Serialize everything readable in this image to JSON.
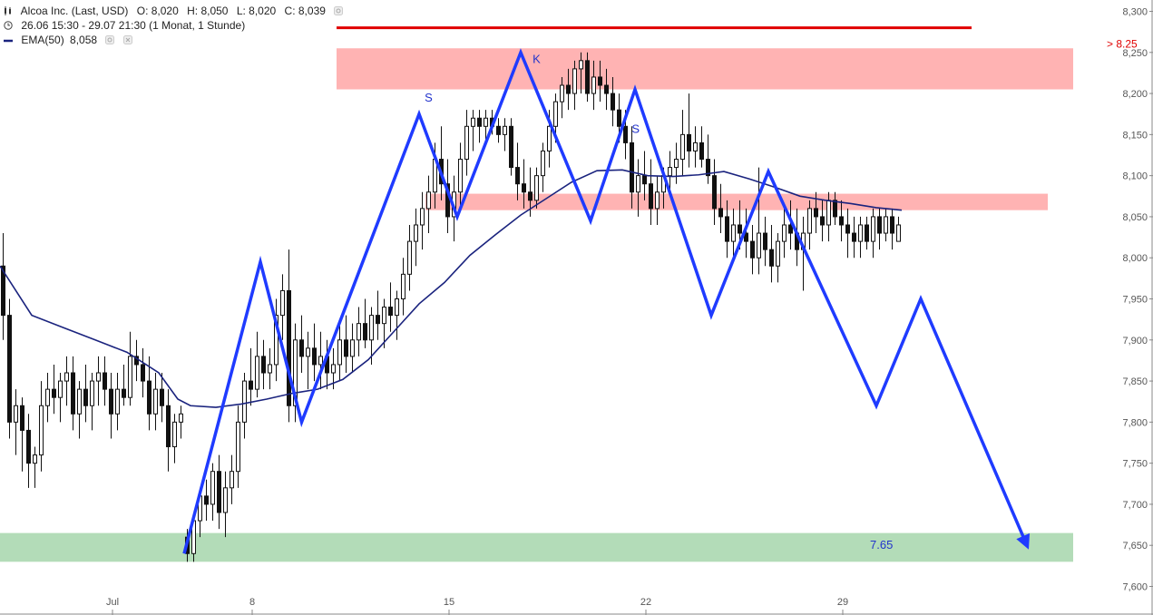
{
  "header": {
    "symbol_line": {
      "name": "Alcoa Inc. (Last, USD)",
      "open": "O: 8,020",
      "high": "H: 8,050",
      "low": "L: 8,020",
      "close": "C: 8,039"
    },
    "range_line": "26.06 15:30 - 29.07 21:30 (1 Monat, 1 Stunde)",
    "ema_line": {
      "label": "EMA(50)",
      "value": "8,058"
    }
  },
  "colors": {
    "candle": "#111111",
    "ema": "#1a237e",
    "pattern": "#1f3bff",
    "resistance_line": "#e00000",
    "red_zone": "#ffb3b3",
    "green_zone": "#b3dcb8",
    "text_blue": "#2233cc",
    "text_red": "#e00000"
  },
  "chart_data": {
    "type": "candlestick",
    "y_axis": {
      "range": [
        7.59,
        8.31
      ],
      "ticks": [
        "8,300",
        "8,250",
        "8,200",
        "8,150",
        "8,100",
        "8,050",
        "8,000",
        "7,950",
        "7,900",
        "7,850",
        "7,800",
        "7,750",
        "7,700",
        "7,650",
        "7,600"
      ],
      "tick_values": [
        8.3,
        8.25,
        8.2,
        8.15,
        8.1,
        8.05,
        8.0,
        7.95,
        7.9,
        7.85,
        7.8,
        7.75,
        7.7,
        7.65,
        7.6
      ]
    },
    "x_axis": {
      "range": [
        0,
        143
      ],
      "ticks": [
        {
          "label": "Jul",
          "bar": 18
        },
        {
          "label": "8",
          "bar": 40
        },
        {
          "label": "15",
          "bar": 71
        },
        {
          "label": "22",
          "bar": 102
        },
        {
          "label": "29",
          "bar": 133
        }
      ]
    },
    "candles": [
      [
        0.5,
        7.99,
        8.03,
        7.9,
        7.93
      ],
      [
        1.5,
        7.93,
        7.95,
        7.78,
        7.8
      ],
      [
        2.5,
        7.8,
        7.84,
        7.76,
        7.82
      ],
      [
        3.5,
        7.82,
        7.83,
        7.74,
        7.79
      ],
      [
        4.5,
        7.79,
        7.81,
        7.72,
        7.75
      ],
      [
        5.5,
        7.75,
        7.77,
        7.72,
        7.76
      ],
      [
        6.5,
        7.76,
        7.85,
        7.74,
        7.82
      ],
      [
        7.5,
        7.82,
        7.86,
        7.8,
        7.84
      ],
      [
        8.5,
        7.84,
        7.87,
        7.81,
        7.83
      ],
      [
        9.5,
        7.83,
        7.86,
        7.8,
        7.85
      ],
      [
        10.5,
        7.85,
        7.88,
        7.82,
        7.86
      ],
      [
        11.5,
        7.86,
        7.88,
        7.79,
        7.81
      ],
      [
        12.5,
        7.81,
        7.85,
        7.78,
        7.84
      ],
      [
        13.5,
        7.84,
        7.87,
        7.8,
        7.82
      ],
      [
        14.5,
        7.82,
        7.86,
        7.79,
        7.85
      ],
      [
        15.5,
        7.85,
        7.88,
        7.82,
        7.86
      ],
      [
        16.5,
        7.86,
        7.88,
        7.82,
        7.84
      ],
      [
        17.5,
        7.84,
        7.86,
        7.78,
        7.81
      ],
      [
        18.5,
        7.81,
        7.86,
        7.79,
        7.84
      ],
      [
        19.5,
        7.84,
        7.87,
        7.82,
        7.83
      ],
      [
        20.5,
        7.83,
        7.91,
        7.82,
        7.88
      ],
      [
        21.5,
        7.88,
        7.9,
        7.85,
        7.87
      ],
      [
        22.5,
        7.87,
        7.89,
        7.83,
        7.85
      ],
      [
        23.5,
        7.85,
        7.88,
        7.79,
        7.81
      ],
      [
        24.5,
        7.81,
        7.86,
        7.79,
        7.84
      ],
      [
        25.5,
        7.84,
        7.86,
        7.8,
        7.82
      ],
      [
        26.5,
        7.82,
        7.84,
        7.74,
        7.77
      ],
      [
        27.5,
        7.77,
        7.81,
        7.75,
        7.8
      ],
      [
        28.5,
        7.8,
        7.82,
        7.78,
        7.81
      ],
      [
        29.5,
        7.66,
        7.67,
        7.63,
        7.64
      ],
      [
        30.5,
        7.64,
        7.69,
        7.63,
        7.68
      ],
      [
        31.5,
        7.68,
        7.72,
        7.66,
        7.71
      ],
      [
        32.5,
        7.71,
        7.73,
        7.68,
        7.7
      ],
      [
        33.5,
        7.7,
        7.75,
        7.68,
        7.74
      ],
      [
        34.5,
        7.74,
        7.76,
        7.67,
        7.69
      ],
      [
        35.5,
        7.69,
        7.74,
        7.66,
        7.72
      ],
      [
        36.5,
        7.72,
        7.76,
        7.7,
        7.74
      ],
      [
        37.5,
        7.74,
        7.82,
        7.72,
        7.8
      ],
      [
        38.5,
        7.8,
        7.86,
        7.78,
        7.85
      ],
      [
        39.5,
        7.85,
        7.89,
        7.82,
        7.84
      ],
      [
        40.5,
        7.84,
        7.91,
        7.83,
        7.88
      ],
      [
        41.5,
        7.88,
        7.9,
        7.84,
        7.86
      ],
      [
        42.5,
        7.86,
        7.89,
        7.84,
        7.87
      ],
      [
        43.5,
        7.87,
        7.95,
        7.85,
        7.93
      ],
      [
        44.5,
        7.93,
        7.98,
        7.9,
        7.96
      ],
      [
        45.5,
        7.96,
        8.01,
        7.8,
        7.82
      ],
      [
        46.5,
        7.82,
        7.92,
        7.8,
        7.9
      ],
      [
        47.5,
        7.9,
        7.93,
        7.86,
        7.88
      ],
      [
        48.5,
        7.88,
        7.91,
        7.84,
        7.89
      ],
      [
        49.5,
        7.89,
        7.92,
        7.85,
        7.87
      ],
      [
        50.5,
        7.87,
        7.91,
        7.84,
        7.88
      ],
      [
        51.5,
        7.88,
        7.9,
        7.84,
        7.86
      ],
      [
        52.5,
        7.86,
        7.89,
        7.84,
        7.87
      ],
      [
        53.5,
        7.87,
        7.92,
        7.85,
        7.9
      ],
      [
        54.5,
        7.9,
        7.93,
        7.86,
        7.88
      ],
      [
        55.5,
        7.88,
        7.92,
        7.86,
        7.9
      ],
      [
        56.5,
        7.9,
        7.94,
        7.88,
        7.92
      ],
      [
        57.5,
        7.92,
        7.95,
        7.89,
        7.9
      ],
      [
        58.5,
        7.9,
        7.94,
        7.87,
        7.93
      ],
      [
        59.5,
        7.93,
        7.96,
        7.9,
        7.92
      ],
      [
        60.5,
        7.92,
        7.95,
        7.89,
        7.94
      ],
      [
        61.5,
        7.94,
        7.97,
        7.91,
        7.93
      ],
      [
        62.5,
        7.93,
        7.96,
        7.9,
        7.95
      ],
      [
        63.5,
        7.95,
        8.0,
        7.93,
        7.98
      ],
      [
        64.5,
        7.98,
        8.04,
        7.96,
        8.02
      ],
      [
        65.5,
        8.02,
        8.06,
        7.99,
        8.04
      ],
      [
        66.5,
        8.04,
        8.08,
        8.01,
        8.06
      ],
      [
        67.5,
        8.06,
        8.1,
        8.03,
        8.08
      ],
      [
        68.5,
        8.08,
        8.14,
        8.06,
        8.12
      ],
      [
        69.5,
        8.12,
        8.16,
        8.07,
        8.09
      ],
      [
        70.5,
        8.09,
        8.12,
        8.03,
        8.05
      ],
      [
        71.5,
        8.05,
        8.1,
        8.02,
        8.08
      ],
      [
        72.5,
        8.08,
        8.14,
        8.06,
        8.12
      ],
      [
        73.5,
        8.12,
        8.18,
        8.1,
        8.16
      ],
      [
        74.5,
        8.16,
        8.18,
        8.13,
        8.17
      ],
      [
        75.5,
        8.17,
        8.18,
        8.14,
        8.16
      ],
      [
        76.5,
        8.16,
        8.18,
        8.14,
        8.17
      ],
      [
        77.5,
        8.17,
        8.18,
        8.15,
        8.16
      ],
      [
        78.5,
        8.16,
        8.17,
        8.14,
        8.15
      ],
      [
        79.5,
        8.15,
        8.17,
        8.13,
        8.16
      ],
      [
        80.5,
        8.16,
        8.17,
        8.1,
        8.11
      ],
      [
        81.5,
        8.11,
        8.14,
        8.07,
        8.09
      ],
      [
        82.5,
        8.09,
        8.12,
        8.06,
        8.08
      ],
      [
        83.5,
        8.08,
        8.11,
        8.05,
        8.07
      ],
      [
        84.5,
        8.07,
        8.11,
        8.06,
        8.1
      ],
      [
        85.5,
        8.1,
        8.14,
        8.08,
        8.13
      ],
      [
        86.5,
        8.13,
        8.18,
        8.11,
        8.16
      ],
      [
        87.5,
        8.16,
        8.2,
        8.14,
        8.19
      ],
      [
        88.5,
        8.19,
        8.22,
        8.17,
        8.21
      ],
      [
        89.5,
        8.21,
        8.23,
        8.18,
        8.2
      ],
      [
        90.5,
        8.2,
        8.24,
        8.18,
        8.23
      ],
      [
        91.5,
        8.23,
        8.25,
        8.2,
        8.24
      ],
      [
        92.5,
        8.24,
        8.25,
        8.19,
        8.2
      ],
      [
        93.5,
        8.2,
        8.24,
        8.18,
        8.22
      ],
      [
        94.5,
        8.22,
        8.24,
        8.19,
        8.21
      ],
      [
        95.5,
        8.21,
        8.23,
        8.18,
        8.2
      ],
      [
        96.5,
        8.2,
        8.22,
        8.16,
        8.18
      ],
      [
        97.5,
        8.18,
        8.2,
        8.14,
        8.16
      ],
      [
        98.5,
        8.16,
        8.18,
        8.12,
        8.14
      ],
      [
        99.5,
        8.14,
        8.16,
        8.06,
        8.08
      ],
      [
        100.5,
        8.08,
        8.12,
        8.05,
        8.1
      ],
      [
        101.5,
        8.1,
        8.13,
        8.07,
        8.09
      ],
      [
        102.5,
        8.09,
        8.12,
        8.04,
        8.06
      ],
      [
        103.5,
        8.06,
        8.1,
        8.04,
        8.08
      ],
      [
        104.5,
        8.08,
        8.11,
        8.06,
        8.1
      ],
      [
        105.5,
        8.1,
        8.13,
        8.08,
        8.11
      ],
      [
        106.5,
        8.11,
        8.14,
        8.09,
        8.12
      ],
      [
        107.5,
        8.12,
        8.18,
        8.1,
        8.15
      ],
      [
        108.5,
        8.15,
        8.2,
        8.11,
        8.13
      ],
      [
        109.5,
        8.13,
        8.16,
        8.11,
        8.14
      ],
      [
        110.5,
        8.14,
        8.16,
        8.11,
        8.12
      ],
      [
        111.5,
        8.12,
        8.15,
        8.09,
        8.1
      ],
      [
        112.5,
        8.1,
        8.12,
        8.04,
        8.06
      ],
      [
        113.5,
        8.06,
        8.09,
        8.03,
        8.05
      ],
      [
        114.5,
        8.05,
        8.07,
        8.0,
        8.02
      ],
      [
        115.5,
        8.02,
        8.06,
        8.0,
        8.04
      ],
      [
        116.5,
        8.04,
        8.07,
        8.01,
        8.03
      ],
      [
        117.5,
        8.03,
        8.06,
        8.0,
        8.02
      ],
      [
        118.5,
        8.02,
        8.04,
        7.98,
        8.0
      ],
      [
        119.5,
        8.0,
        8.11,
        7.98,
        8.03
      ],
      [
        120.5,
        8.03,
        8.05,
        7.99,
        8.01
      ],
      [
        121.5,
        8.01,
        8.04,
        7.97,
        7.99
      ],
      [
        122.5,
        7.99,
        8.03,
        7.97,
        8.02
      ],
      [
        123.5,
        8.02,
        8.06,
        8.0,
        8.04
      ],
      [
        124.5,
        8.04,
        8.07,
        8.01,
        8.03
      ],
      [
        125.5,
        8.03,
        8.06,
        7.99,
        8.01
      ],
      [
        126.5,
        8.01,
        8.05,
        7.96,
        8.03
      ],
      [
        127.5,
        8.03,
        8.07,
        8.01,
        8.06
      ],
      [
        128.5,
        8.06,
        8.08,
        8.03,
        8.05
      ],
      [
        129.5,
        8.05,
        8.07,
        8.02,
        8.04
      ],
      [
        130.5,
        8.04,
        8.08,
        8.02,
        8.07
      ],
      [
        131.5,
        8.07,
        8.08,
        8.04,
        8.05
      ],
      [
        132.5,
        8.05,
        8.07,
        8.02,
        8.04
      ],
      [
        133.5,
        8.04,
        8.06,
        8.0,
        8.03
      ],
      [
        134.5,
        8.03,
        8.05,
        8.0,
        8.02
      ],
      [
        135.5,
        8.02,
        8.05,
        8.0,
        8.04
      ],
      [
        136.5,
        8.04,
        8.05,
        8.01,
        8.02
      ],
      [
        137.5,
        8.02,
        8.06,
        8.0,
        8.05
      ],
      [
        138.5,
        8.05,
        8.06,
        8.01,
        8.03
      ],
      [
        139.5,
        8.03,
        8.06,
        8.02,
        8.05
      ],
      [
        140.5,
        8.05,
        8.06,
        8.01,
        8.03
      ],
      [
        141.5,
        8.02,
        8.05,
        8.02,
        8.04
      ]
    ],
    "ema50": {
      "label": "EMA(50)",
      "points": [
        [
          0,
          7.99
        ],
        [
          5,
          7.93
        ],
        [
          10,
          7.915
        ],
        [
          15,
          7.9
        ],
        [
          20,
          7.885
        ],
        [
          25,
          7.86
        ],
        [
          28,
          7.828
        ],
        [
          30,
          7.82
        ],
        [
          34,
          7.818
        ],
        [
          38,
          7.822
        ],
        [
          42,
          7.828
        ],
        [
          46,
          7.835
        ],
        [
          50,
          7.84
        ],
        [
          54,
          7.852
        ],
        [
          58,
          7.876
        ],
        [
          62,
          7.91
        ],
        [
          66,
          7.944
        ],
        [
          70,
          7.97
        ],
        [
          74,
          8.003
        ],
        [
          78,
          8.028
        ],
        [
          82,
          8.052
        ],
        [
          86,
          8.072
        ],
        [
          90,
          8.092
        ],
        [
          94,
          8.106
        ],
        [
          98,
          8.107
        ],
        [
          102,
          8.1
        ],
        [
          106,
          8.099
        ],
        [
          110,
          8.101
        ],
        [
          114,
          8.105
        ],
        [
          118,
          8.096
        ],
        [
          122,
          8.086
        ],
        [
          126,
          8.075
        ],
        [
          130,
          8.07
        ],
        [
          134,
          8.066
        ],
        [
          138,
          8.061
        ],
        [
          142,
          8.058
        ]
      ]
    },
    "zones": [
      {
        "from_bar": 53,
        "to_bar": 169,
        "y_low": 8.205,
        "y_high": 8.255,
        "color": "red_zone"
      },
      {
        "from_bar": 67,
        "to_bar": 165,
        "y_low": 8.058,
        "y_high": 8.078,
        "color": "red_zone"
      },
      {
        "from_bar": 0,
        "to_bar": 169,
        "y_low": 7.63,
        "y_high": 7.665,
        "color": "green_zone"
      }
    ],
    "resistance": {
      "from_bar": 53,
      "to_bar": 143,
      "y": 8.28,
      "label": "> 8.25"
    },
    "target_label": {
      "text": "7.65",
      "bar": 137,
      "y": 7.65
    },
    "pattern_path": [
      [
        29,
        7.64
      ],
      [
        41,
        7.995
      ],
      [
        47.5,
        7.8
      ],
      [
        66,
        8.175
      ],
      [
        72,
        8.05
      ],
      [
        82,
        8.25
      ],
      [
        93,
        8.045
      ],
      [
        100,
        8.205
      ],
      [
        112,
        7.93
      ],
      [
        121,
        8.105
      ],
      [
        138,
        7.82
      ],
      [
        145,
        7.95
      ],
      [
        162,
        7.645
      ]
    ],
    "pattern_labels": [
      {
        "text": "S",
        "bar": 67.5,
        "y": 8.19
      },
      {
        "text": "K",
        "bar": 84.5,
        "y": 8.237
      },
      {
        "text": "S",
        "bar": 100.1,
        "y": 8.152
      }
    ]
  }
}
